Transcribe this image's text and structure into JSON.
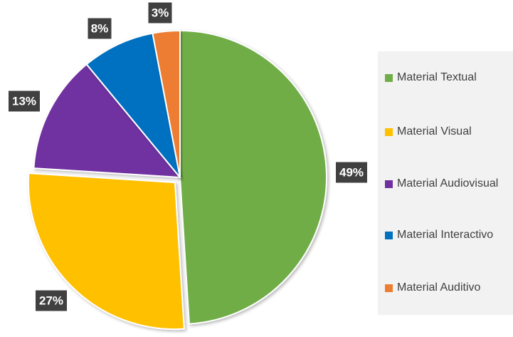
{
  "chart_data": {
    "type": "pie",
    "categories": [
      "Material Textual",
      "Material Visual",
      "Material Audiovisual",
      "Material Interactivo",
      "Material Auditivo"
    ],
    "values": [
      49,
      27,
      13,
      8,
      3
    ],
    "data_labels": [
      "49%",
      "27%",
      "13%",
      "8%",
      "3%"
    ],
    "colors": [
      "#70ad47",
      "#ffc000",
      "#7030a0",
      "#0070c0",
      "#ed7d31"
    ],
    "exploded_slice": "Material Visual",
    "legend_placement": "right",
    "title": ""
  }
}
